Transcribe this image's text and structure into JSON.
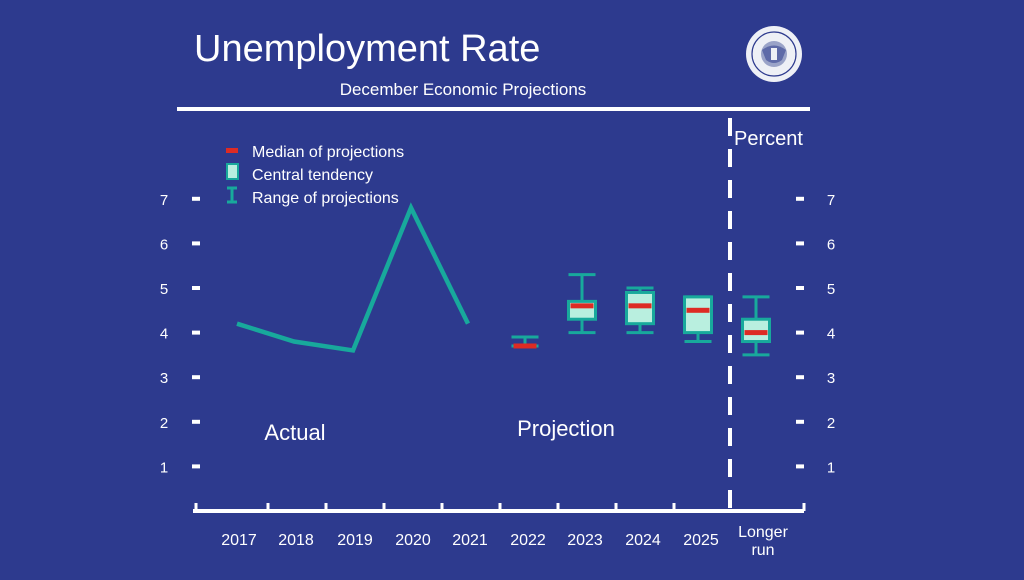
{
  "header": {
    "title": "Unemployment Rate",
    "subtitle": "December Economic Projections",
    "seal_text": "FEDERAL RESERVE SYSTEM"
  },
  "legend": {
    "median": "Median of projections",
    "central": "Central tendency",
    "range": "Range of projections"
  },
  "unit_label": "Percent",
  "section_labels": {
    "actual": "Actual",
    "projection": "Projection"
  },
  "colors": {
    "background": "#2d3a8e",
    "teal": "#18a99c",
    "central_fill": "#b9efdf",
    "median": "#dd2b24",
    "white": "#ffffff"
  },
  "chart_data": {
    "type": "line",
    "title": "Unemployment Rate",
    "subtitle": "December Economic Projections",
    "ylabel": "Percent",
    "ylim": [
      0,
      7.5
    ],
    "yticks": [
      1,
      2,
      3,
      4,
      5,
      6,
      7
    ],
    "categories": [
      "2017",
      "2018",
      "2019",
      "2020",
      "2021",
      "2022",
      "2023",
      "2024",
      "2025",
      "Longer run"
    ],
    "actual": {
      "x": [
        "2017",
        "2018",
        "2019",
        "2020",
        "2021"
      ],
      "y": [
        4.2,
        3.8,
        3.6,
        6.8,
        4.2
      ]
    },
    "projections": [
      {
        "x": "2022",
        "median": 3.7,
        "central_low": 3.7,
        "central_high": 3.7,
        "range_low": 3.7,
        "range_high": 3.9
      },
      {
        "x": "2023",
        "median": 4.6,
        "central_low": 4.3,
        "central_high": 4.7,
        "range_low": 4.0,
        "range_high": 5.3
      },
      {
        "x": "2024",
        "median": 4.6,
        "central_low": 4.2,
        "central_high": 4.9,
        "range_low": 4.0,
        "range_high": 5.0
      },
      {
        "x": "2025",
        "median": 4.5,
        "central_low": 4.0,
        "central_high": 4.8,
        "range_low": 3.8,
        "range_high": 4.8
      },
      {
        "x": "Longer run",
        "median": 4.0,
        "central_low": 3.8,
        "central_high": 4.3,
        "range_low": 3.5,
        "range_high": 4.8
      }
    ]
  }
}
